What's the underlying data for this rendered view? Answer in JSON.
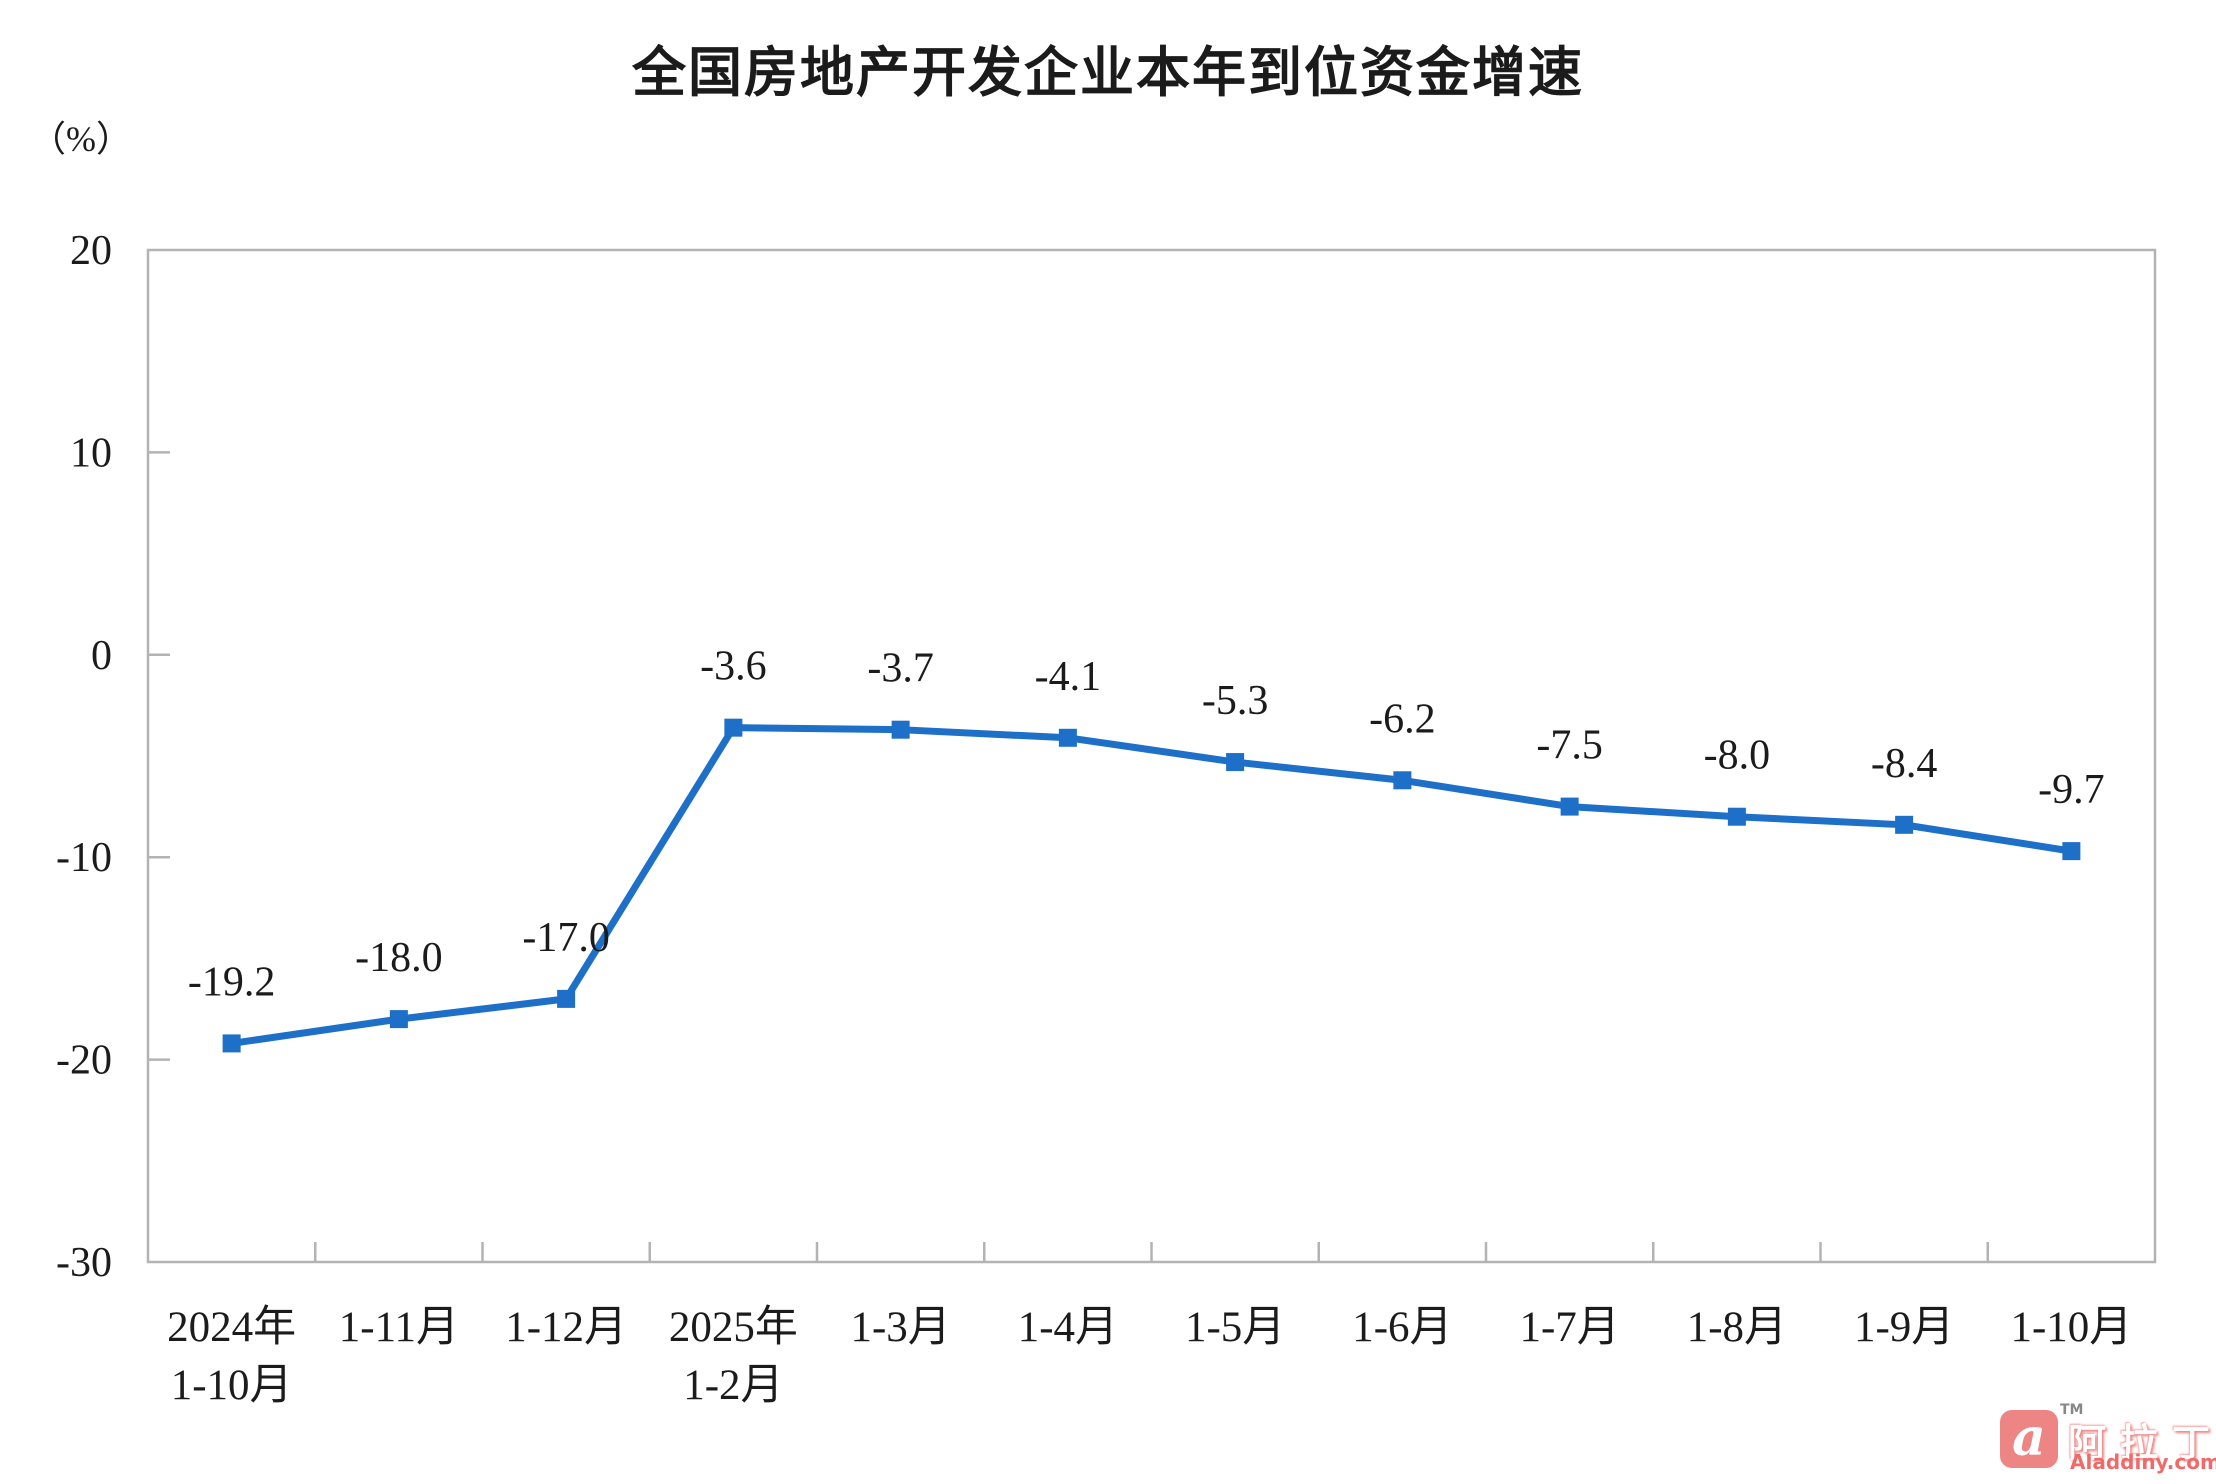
{
  "header": {
    "title": "全国房地产开发企业本年到位资金增速",
    "unit_label": "（%）"
  },
  "chart_data": {
    "type": "line",
    "title": "全国房地产开发企业本年到位资金增速",
    "ylabel": "（%）",
    "xlabel": "",
    "ylim": [
      -30,
      20
    ],
    "yticks": [
      20,
      10,
      0,
      -10,
      -20,
      -30
    ],
    "grid": false,
    "legend_position": "none",
    "categories": [
      [
        "2024年",
        "1-10月"
      ],
      [
        "1-11月"
      ],
      [
        "1-12月"
      ],
      [
        "2025年",
        "1-2月"
      ],
      [
        "1-3月"
      ],
      [
        "1-4月"
      ],
      [
        "1-5月"
      ],
      [
        "1-6月"
      ],
      [
        "1-7月"
      ],
      [
        "1-8月"
      ],
      [
        "1-9月"
      ],
      [
        "1-10月"
      ]
    ],
    "series": [
      {
        "name": "本年到位资金增速",
        "values": [
          -19.2,
          -18.0,
          -17.0,
          -3.6,
          -3.7,
          -4.1,
          -5.3,
          -6.2,
          -7.5,
          -8.0,
          -8.4,
          -9.7
        ],
        "value_labels": [
          "-19.2",
          "-18.0",
          "-17.0",
          "-3.6",
          "-3.7",
          "-4.1",
          "-5.3",
          "-6.2",
          "-7.5",
          "-8.0",
          "-8.4",
          "-9.7"
        ]
      }
    ],
    "colors": {
      "line": "#1e6fc8",
      "marker": "#1e6fc8",
      "axis": "#b3b3b3",
      "text": "#1b1b1b"
    }
  },
  "watermark": {
    "logo_letter": "a",
    "tm": "TM",
    "brand": "阿拉丁",
    "site": "Aladdiny.com"
  }
}
